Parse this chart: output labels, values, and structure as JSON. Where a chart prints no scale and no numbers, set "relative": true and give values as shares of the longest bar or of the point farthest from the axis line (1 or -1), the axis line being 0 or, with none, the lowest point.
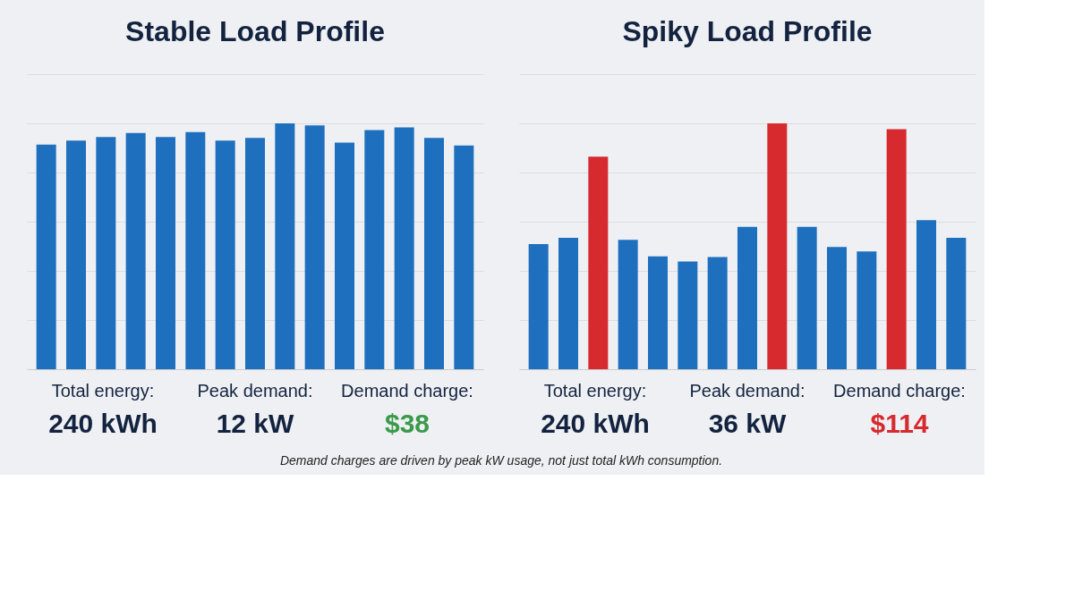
{
  "chart_data": [
    {
      "type": "bar",
      "title": "Stable Load Profile",
      "relative": true,
      "grid": "y",
      "categories": [
        null,
        null,
        null,
        null,
        null,
        null,
        null,
        null,
        null,
        null,
        null,
        null,
        null,
        null,
        null
      ],
      "values": [
        0.914,
        0.93,
        0.945,
        0.961,
        0.945,
        0.965,
        0.93,
        0.941,
        1,
        0.992,
        0.922,
        0.973,
        0.984,
        0.941,
        0.91
      ],
      "colors": [
        "#1f6fbf",
        "#1f6fbf",
        "#1f6fbf",
        "#1f6fbf",
        "#1f6fbf",
        "#1f6fbf",
        "#1f6fbf",
        "#1f6fbf",
        "#1f6fbf",
        "#1f6fbf",
        "#1f6fbf",
        "#1f6fbf",
        "#1f6fbf",
        "#1f6fbf",
        "#1f6fbf"
      ],
      "annotations": [
        "Total energy:",
        "240 kWh",
        "Peak demand:",
        "12 kW",
        "Demand charge:",
        "$38"
      ]
    },
    {
      "type": "bar",
      "title": "Spiky Load Profile",
      "relative": true,
      "grid": "y",
      "categories": [
        null,
        null,
        null,
        null,
        null,
        null,
        null,
        null,
        null,
        null,
        null,
        null,
        null,
        null,
        null
      ],
      "values": [
        0.509,
        0.535,
        0.865,
        0.526,
        0.459,
        0.438,
        0.456,
        0.579,
        1,
        0.579,
        0.497,
        0.479,
        0.976,
        0.606,
        0.535
      ],
      "colors": [
        "#1f6fbf",
        "#1f6fbf",
        "#d62a2f",
        "#1f6fbf",
        "#1f6fbf",
        "#1f6fbf",
        "#1f6fbf",
        "#1f6fbf",
        "#d62a2f",
        "#1f6fbf",
        "#1f6fbf",
        "#1f6fbf",
        "#d62a2f",
        "#1f6fbf",
        "#1f6fbf"
      ],
      "annotations": [
        "Total energy:",
        "240 kWh",
        "Peak demand:",
        "36 kW",
        "Demand charge:",
        "$114",
        "Demand charges are driven by peak kW usage, not just total kWh consumption."
      ]
    }
  ]
}
